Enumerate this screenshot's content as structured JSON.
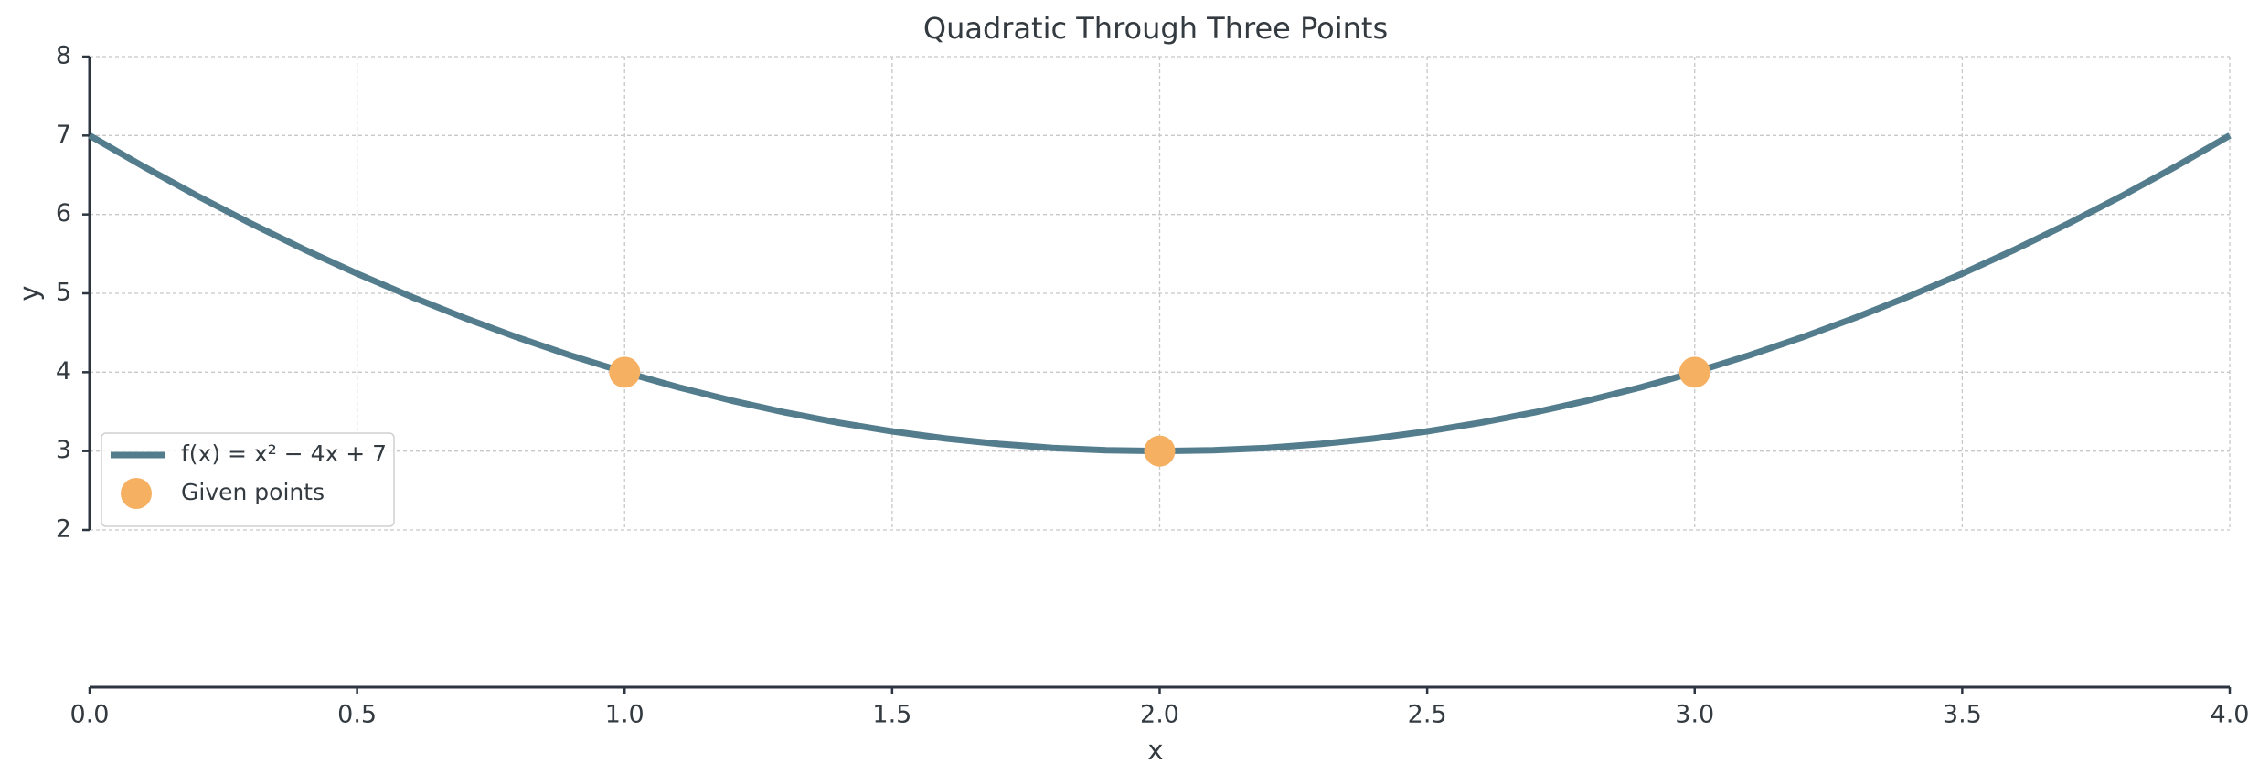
{
  "chart_data": {
    "type": "line",
    "title": "Quadratic Through Three Points",
    "x_label": "x",
    "y_label": "y",
    "xlim": [
      0,
      4
    ],
    "ylim": [
      2,
      8
    ],
    "xticks": [
      {
        "value": 0,
        "label": "0.0"
      },
      {
        "value": 0.5,
        "label": "0.5"
      },
      {
        "value": 1,
        "label": "1.0"
      },
      {
        "value": 1.5,
        "label": "1.5"
      },
      {
        "value": 2,
        "label": "2.0"
      },
      {
        "value": 2.5,
        "label": "2.5"
      },
      {
        "value": 3,
        "label": "3.0"
      },
      {
        "value": 3.5,
        "label": "3.5"
      },
      {
        "value": 4,
        "label": "4.0"
      }
    ],
    "yticks": [
      2,
      3,
      4,
      5,
      6,
      7,
      8
    ],
    "grid": true,
    "legend": "lower left",
    "series": [
      {
        "name": "f(x) = x² − 4x + 7",
        "type": "line",
        "color": "#537d8d",
        "x": [
          0,
          0.1,
          0.2,
          0.3,
          0.4,
          0.5,
          0.6,
          0.7,
          0.8,
          0.9,
          1,
          1.1,
          1.2,
          1.3,
          1.4,
          1.5,
          1.6,
          1.7,
          1.8,
          1.9,
          2,
          2.1,
          2.2,
          2.3,
          2.4,
          2.5,
          2.6,
          2.7,
          2.8,
          2.9,
          3,
          3.1,
          3.2,
          3.3,
          3.4,
          3.5,
          3.6,
          3.7,
          3.8,
          3.9,
          4
        ],
        "values": [
          7,
          6.61,
          6.24,
          5.89,
          5.56,
          5.25,
          4.96,
          4.69,
          4.44,
          4.21,
          4,
          3.81,
          3.64,
          3.49,
          3.36,
          3.25,
          3.16,
          3.09,
          3.04,
          3.01,
          3,
          3.01,
          3.04,
          3.09,
          3.16,
          3.25,
          3.36,
          3.49,
          3.64,
          3.81,
          4,
          4.21,
          4.44,
          4.69,
          4.96,
          5.25,
          5.56,
          5.89,
          6.24,
          6.61,
          7
        ]
      },
      {
        "name": "Given points",
        "type": "scatter",
        "color": "#f5b062",
        "x": [
          1,
          2,
          3
        ],
        "values": [
          4,
          3,
          4
        ]
      }
    ]
  }
}
